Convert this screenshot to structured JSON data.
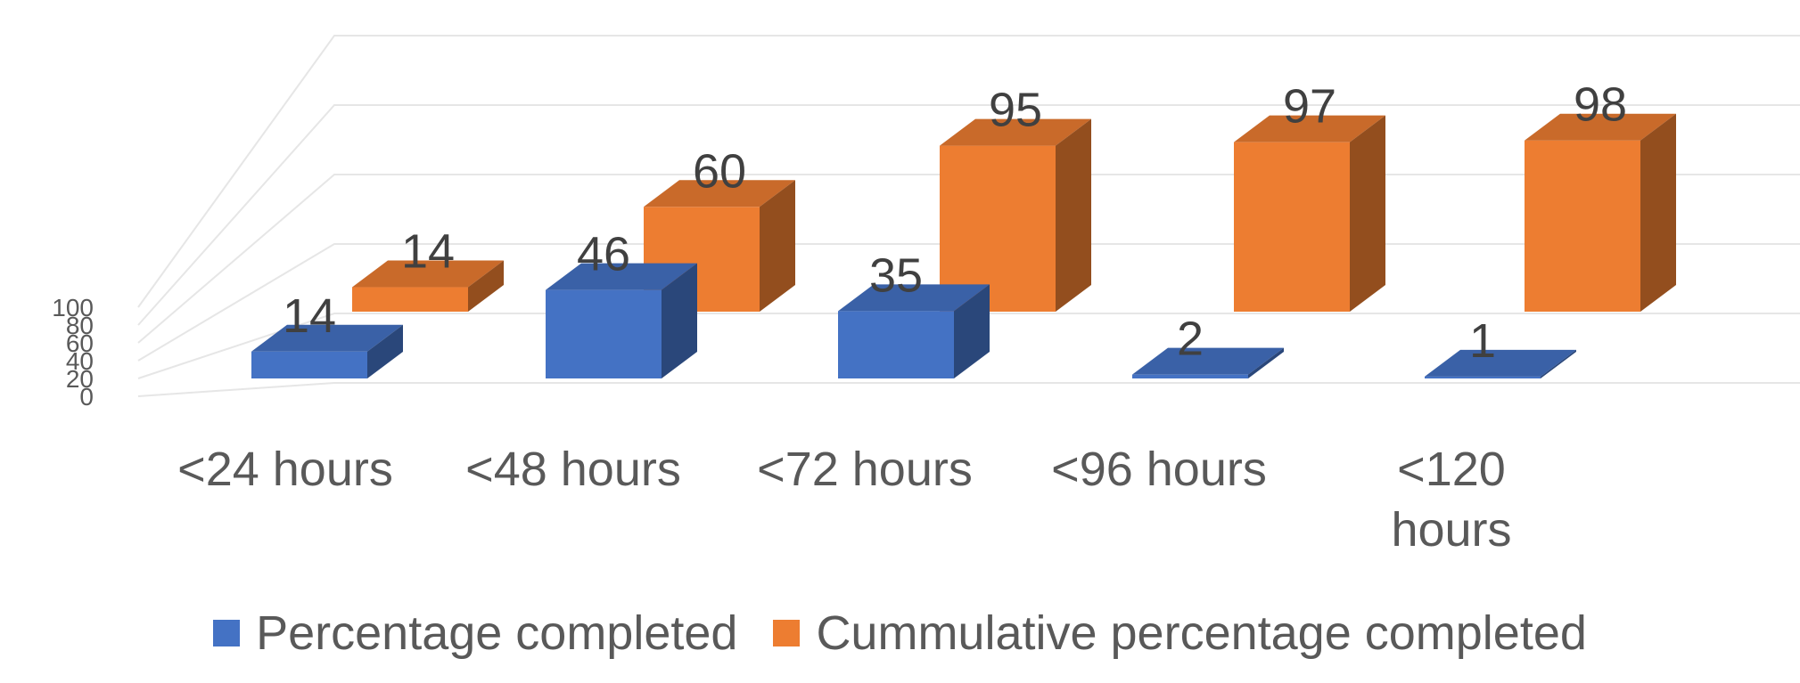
{
  "chart_data": {
    "type": "bar",
    "three_d": true,
    "categories": [
      "<24 hours",
      "<48 hours",
      "<72 hours",
      "<96 hours",
      "<120 hours"
    ],
    "category_label_lines": [
      [
        "<24 hours"
      ],
      [
        "<48 hours"
      ],
      [
        "<72 hours"
      ],
      [
        "<96 hours"
      ],
      [
        "<120",
        "hours"
      ]
    ],
    "series": [
      {
        "name": "Percentage completed",
        "values": [
          14,
          46,
          35,
          2,
          1
        ],
        "color": "#4472C4"
      },
      {
        "name": "Cummulative percentage completed",
        "values": [
          14,
          60,
          95,
          97,
          98
        ],
        "color": "#ED7D31"
      }
    ],
    "y_ticks": [
      "0",
      "20",
      "40",
      "60",
      "80",
      "100"
    ],
    "ylim": [
      0,
      100
    ],
    "grid": true,
    "legend_position": "bottom",
    "title": "",
    "xlabel": "",
    "ylabel": ""
  }
}
